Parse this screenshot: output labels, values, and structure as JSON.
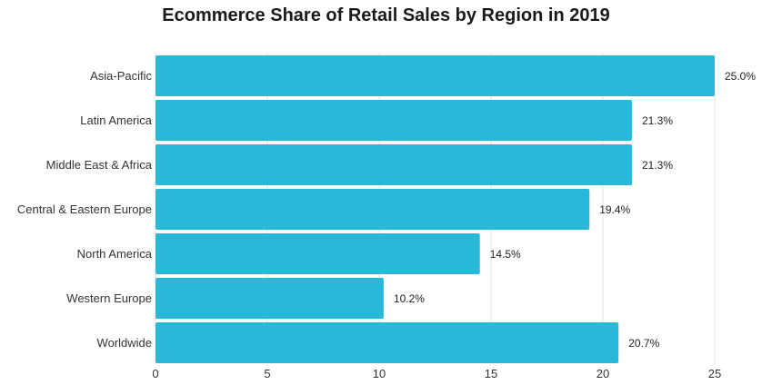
{
  "chart_data": {
    "type": "bar",
    "orientation": "horizontal",
    "title": "Ecommerce Share of Retail Sales by Region in 2019",
    "xlabel": "",
    "ylabel": "",
    "categories": [
      "Asia-Pacific",
      "Latin America",
      "Middle East & Africa",
      "Central & Eastern Europe",
      "North America",
      "Western Europe",
      "Worldwide"
    ],
    "values": [
      25.0,
      21.3,
      21.3,
      19.4,
      14.5,
      10.2,
      20.7
    ],
    "value_labels": [
      "25.0%",
      "21.3%",
      "21.3%",
      "19.4%",
      "14.5%",
      "10.2%",
      "20.7%"
    ],
    "xlim": [
      0,
      25
    ],
    "xticks": [
      0,
      5,
      10,
      15,
      20,
      25
    ],
    "grid": "vertical",
    "legend": "none",
    "bar_color": "#29b8d8"
  }
}
